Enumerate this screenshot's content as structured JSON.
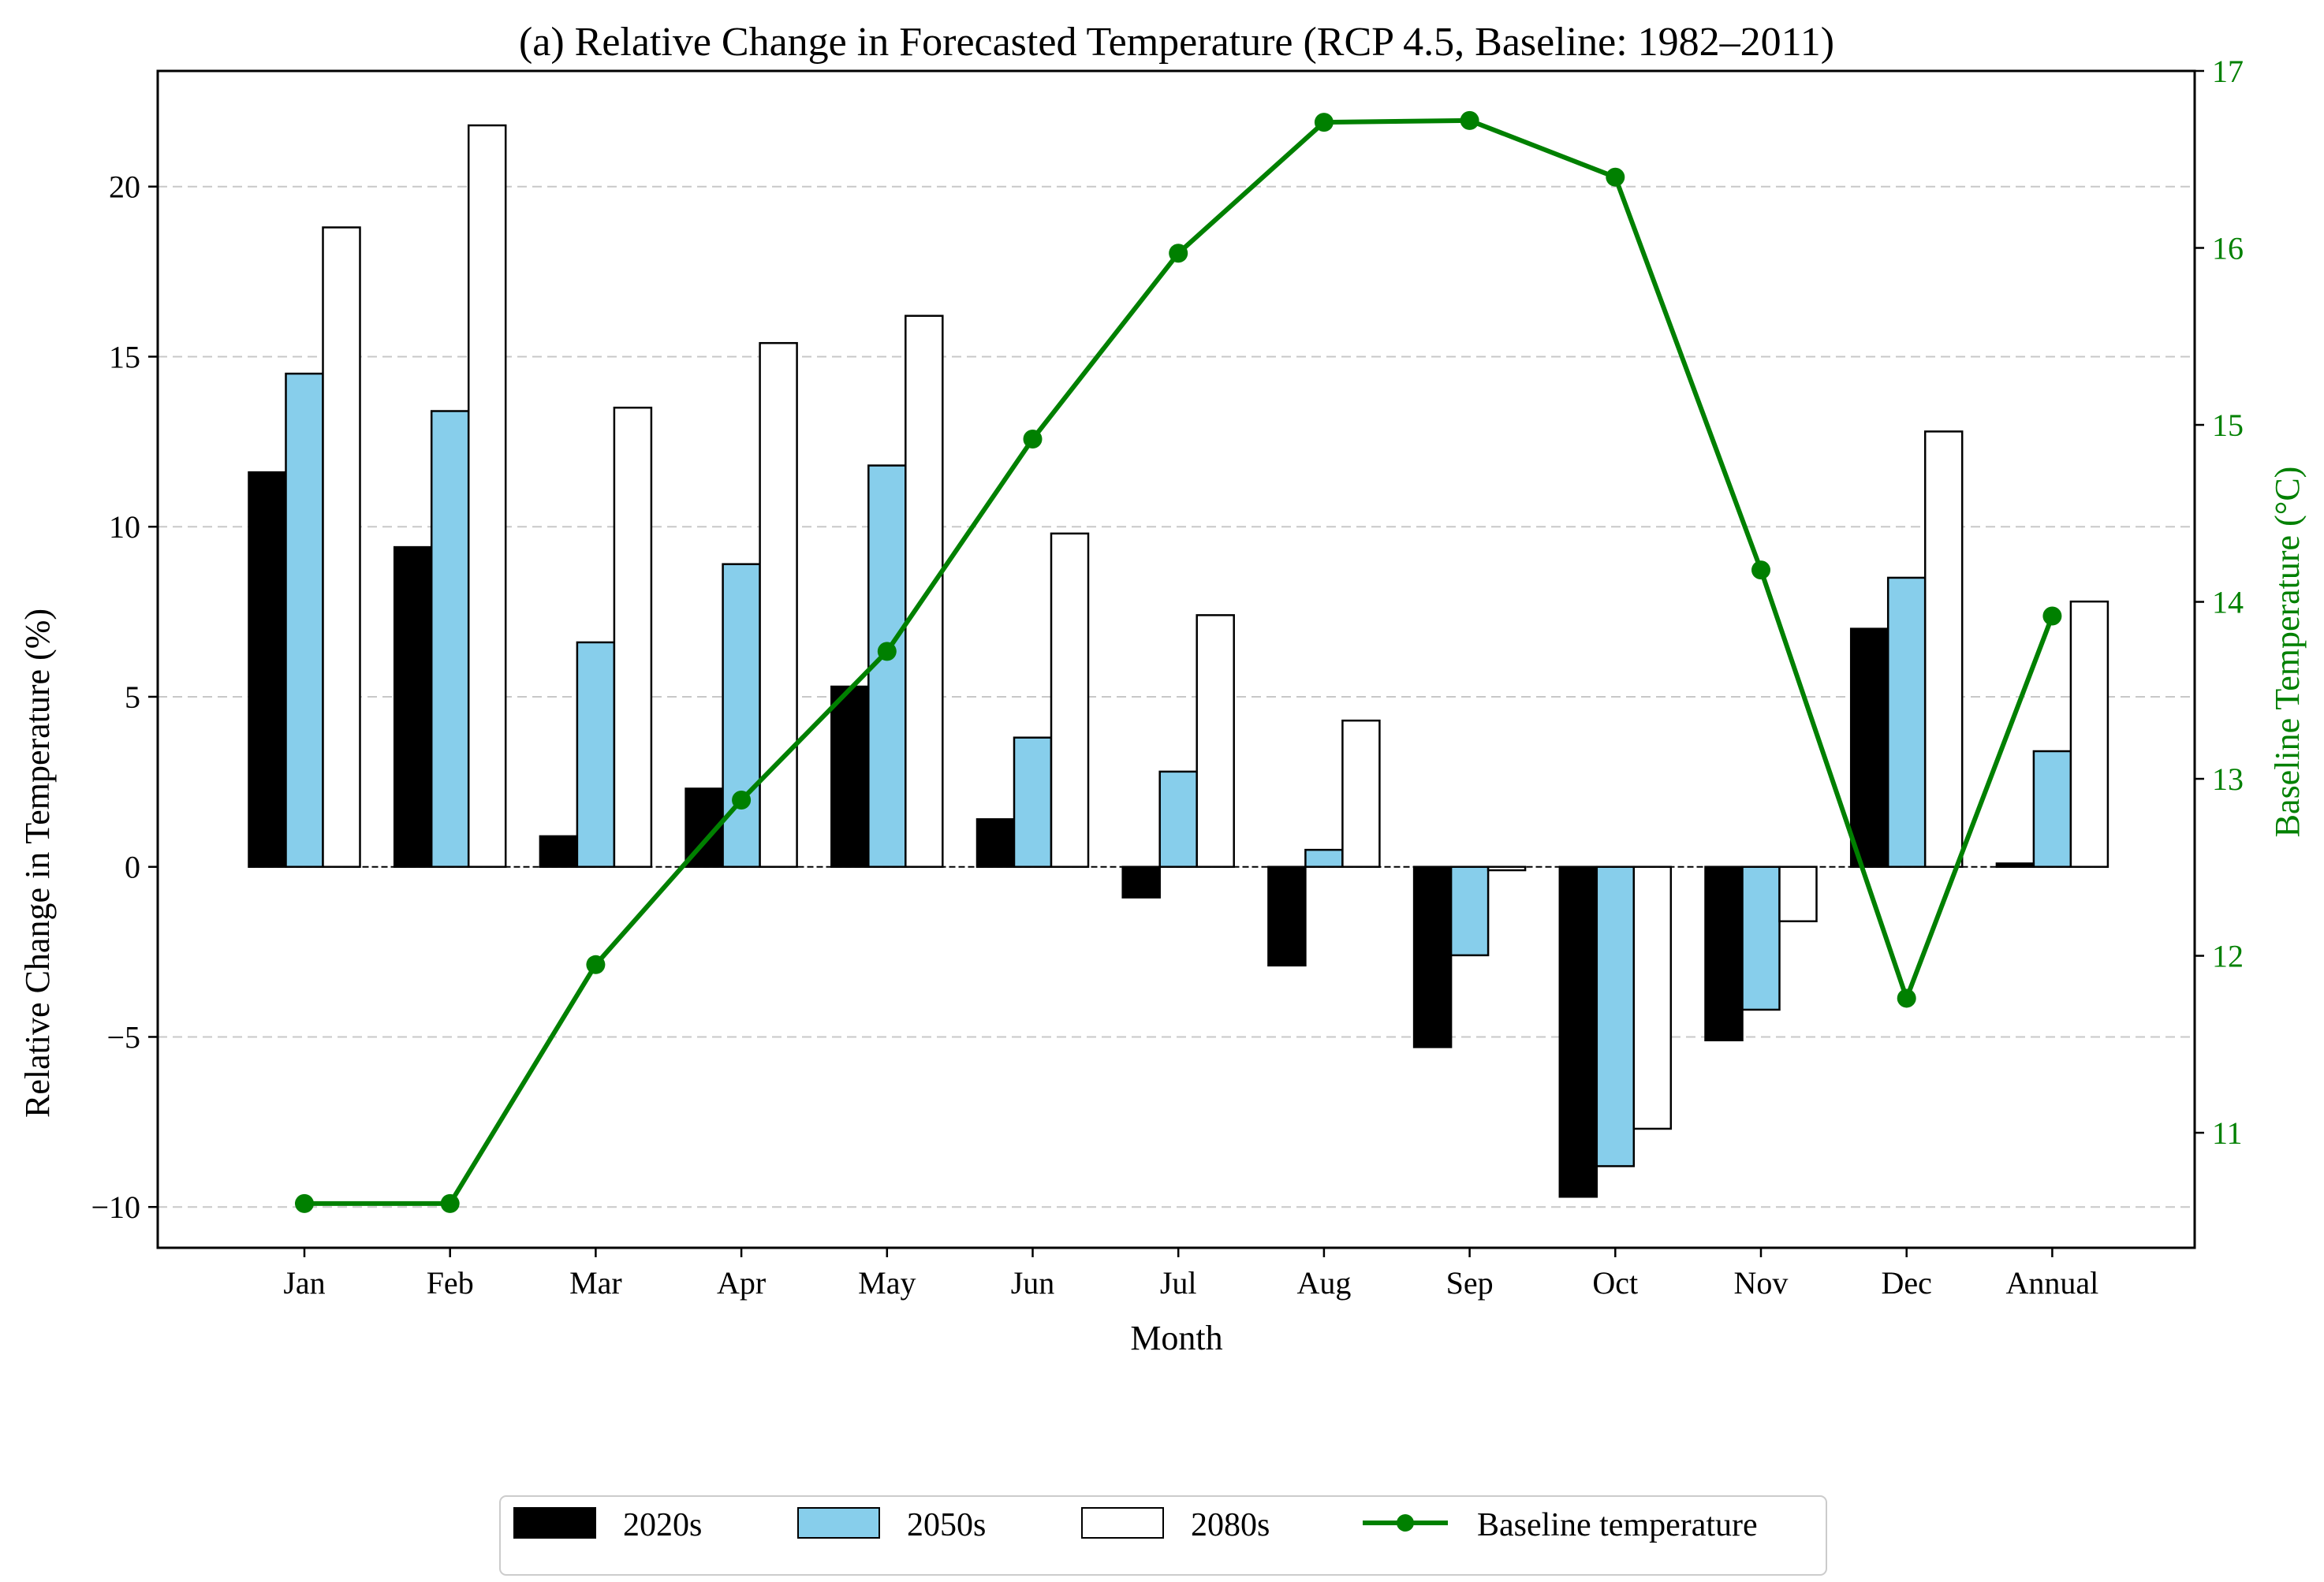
{
  "chart_data": {
    "type": "bar",
    "title": "(a) Relative Change in Forecasted Temperature (RCP 4.5, Baseline: 1982–2011)",
    "xlabel": "Month",
    "ylabel": "Relative Change in Temperature (%)",
    "y2label": "Baseline Temperature (°C)",
    "categories": [
      "Jan",
      "Feb",
      "Mar",
      "Apr",
      "May",
      "Jun",
      "Jul",
      "Aug",
      "Sep",
      "Oct",
      "Nov",
      "Dec",
      "Annual"
    ],
    "ylim": [
      -11.2,
      23.4
    ],
    "yticks": [
      -10,
      -5,
      0,
      5,
      10,
      15,
      20
    ],
    "ytick_labels": [
      "−10",
      "−5",
      "0",
      "5",
      "10",
      "15",
      "20"
    ],
    "y2lim": [
      10.35,
      17.0
    ],
    "y2ticks": [
      11,
      12,
      13,
      14,
      15,
      16,
      17
    ],
    "y2tick_labels": [
      "11",
      "12",
      "13",
      "14",
      "15",
      "16",
      "17"
    ],
    "grid": "horizontal-dashed",
    "legend_position": "bottom-center-outside",
    "series": [
      {
        "name": "2020s",
        "color": "#000000",
        "values": [
          11.6,
          9.4,
          0.9,
          2.3,
          5.3,
          1.4,
          -0.9,
          -2.9,
          -5.3,
          -9.7,
          -5.1,
          7.0,
          0.1
        ]
      },
      {
        "name": "2050s",
        "color": "#87ceeb",
        "values": [
          14.5,
          13.4,
          6.6,
          8.9,
          11.8,
          3.8,
          2.8,
          0.5,
          -2.6,
          -8.8,
          -4.2,
          8.5,
          3.4
        ]
      },
      {
        "name": "2080s",
        "color": "#ffffff",
        "values": [
          18.8,
          21.8,
          13.5,
          15.4,
          16.2,
          9.8,
          7.4,
          4.3,
          -0.1,
          -7.7,
          -1.6,
          12.8,
          7.8
        ]
      }
    ],
    "line_series": {
      "name": "Baseline temperature",
      "color": "#008000",
      "axis": "right",
      "values": [
        10.6,
        10.6,
        11.95,
        12.88,
        13.72,
        14.92,
        15.97,
        16.71,
        16.72,
        16.4,
        14.18,
        11.76,
        13.92
      ]
    }
  }
}
